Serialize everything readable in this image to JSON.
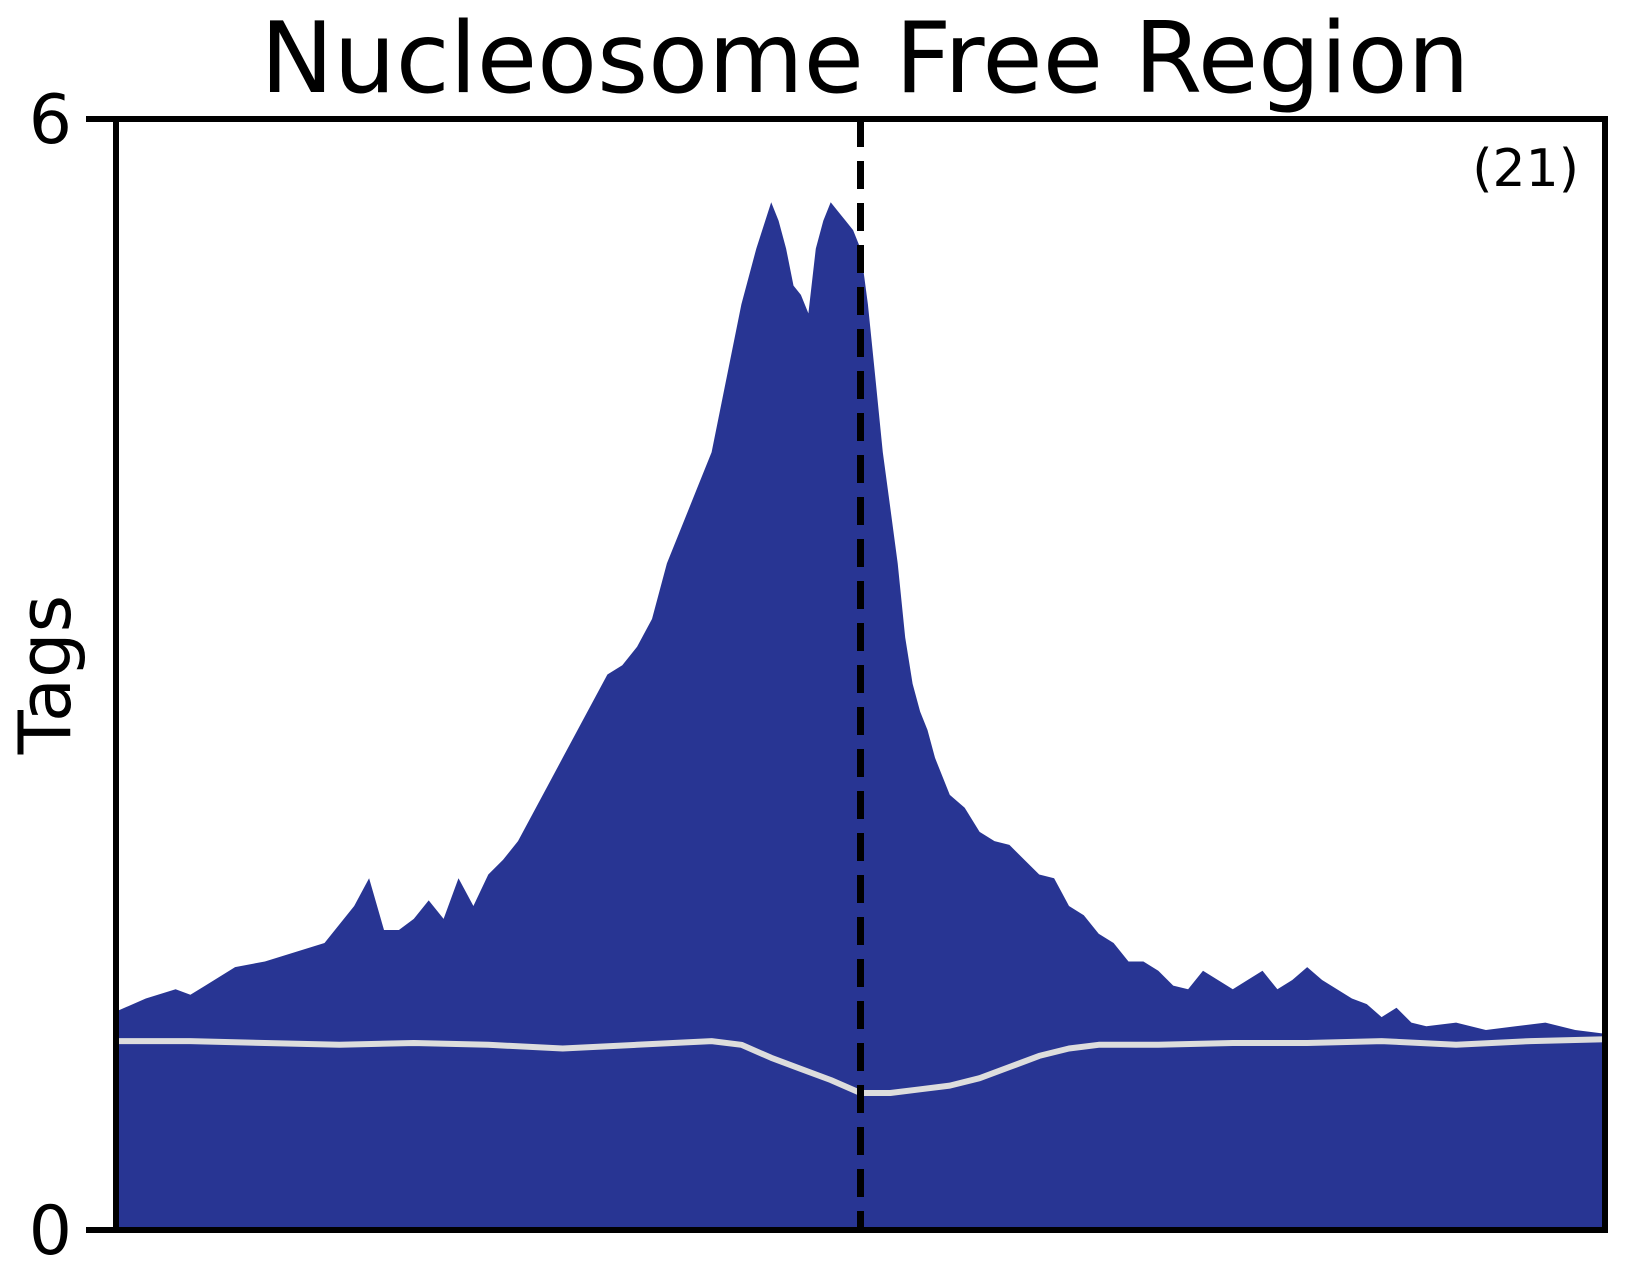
{
  "chart_data": {
    "type": "area",
    "title": "Nucleosome Free Region",
    "xlabel": "",
    "ylabel": "Tags",
    "ylim": [
      0,
      6
    ],
    "yticks": [
      "0",
      "6"
    ],
    "xlim": [
      0,
      1
    ],
    "annotation": "(21)",
    "center_marker": {
      "x": 0.5,
      "style": "dashed"
    },
    "grid": false,
    "legend": "none",
    "colors": {
      "fill": "#283593",
      "background_line": "#dddddd",
      "axes": "#000000"
    },
    "series": [
      {
        "kind": "filled-area",
        "x": [
          0.0,
          0.02,
          0.04,
          0.05,
          0.06,
          0.08,
          0.1,
          0.12,
          0.14,
          0.16,
          0.17,
          0.18,
          0.19,
          0.2,
          0.21,
          0.22,
          0.23,
          0.24,
          0.25,
          0.26,
          0.27,
          0.28,
          0.29,
          0.3,
          0.31,
          0.32,
          0.33,
          0.34,
          0.35,
          0.36,
          0.37,
          0.38,
          0.39,
          0.4,
          0.41,
          0.42,
          0.43,
          0.44,
          0.445,
          0.45,
          0.455,
          0.46,
          0.465,
          0.47,
          0.475,
          0.48,
          0.485,
          0.49,
          0.495,
          0.5,
          0.505,
          0.51,
          0.515,
          0.52,
          0.525,
          0.53,
          0.535,
          0.54,
          0.545,
          0.55,
          0.56,
          0.57,
          0.58,
          0.59,
          0.6,
          0.61,
          0.62,
          0.63,
          0.64,
          0.65,
          0.66,
          0.67,
          0.68,
          0.69,
          0.7,
          0.71,
          0.72,
          0.73,
          0.74,
          0.75,
          0.76,
          0.77,
          0.78,
          0.79,
          0.8,
          0.81,
          0.82,
          0.83,
          0.84,
          0.85,
          0.86,
          0.87,
          0.88,
          0.9,
          0.92,
          0.94,
          0.96,
          0.98,
          1.0
        ],
        "y": [
          1.18,
          1.25,
          1.3,
          1.27,
          1.32,
          1.42,
          1.45,
          1.5,
          1.55,
          1.75,
          1.9,
          1.62,
          1.62,
          1.68,
          1.78,
          1.68,
          1.9,
          1.75,
          1.92,
          2.0,
          2.1,
          2.25,
          2.4,
          2.55,
          2.7,
          2.85,
          3.0,
          3.05,
          3.15,
          3.3,
          3.6,
          3.8,
          4.0,
          4.2,
          4.6,
          5.0,
          5.3,
          5.55,
          5.45,
          5.3,
          5.1,
          5.05,
          4.95,
          5.3,
          5.45,
          5.55,
          5.5,
          5.45,
          5.4,
          5.3,
          5.0,
          4.6,
          4.2,
          3.9,
          3.6,
          3.2,
          2.95,
          2.8,
          2.7,
          2.55,
          2.35,
          2.28,
          2.15,
          2.1,
          2.08,
          2.0,
          1.92,
          1.9,
          1.75,
          1.7,
          1.6,
          1.55,
          1.45,
          1.45,
          1.4,
          1.32,
          1.3,
          1.4,
          1.35,
          1.3,
          1.35,
          1.4,
          1.3,
          1.35,
          1.42,
          1.35,
          1.3,
          1.25,
          1.22,
          1.15,
          1.2,
          1.12,
          1.1,
          1.12,
          1.08,
          1.1,
          1.12,
          1.08,
          1.06
        ]
      },
      {
        "kind": "background-line",
        "x": [
          0.0,
          0.05,
          0.1,
          0.15,
          0.2,
          0.25,
          0.3,
          0.35,
          0.4,
          0.42,
          0.44,
          0.46,
          0.48,
          0.5,
          0.52,
          0.54,
          0.56,
          0.58,
          0.6,
          0.62,
          0.64,
          0.66,
          0.68,
          0.7,
          0.75,
          0.8,
          0.85,
          0.9,
          0.95,
          1.0
        ],
        "y": [
          1.02,
          1.02,
          1.01,
          1.0,
          1.01,
          1.0,
          0.98,
          1.0,
          1.02,
          1.0,
          0.93,
          0.87,
          0.81,
          0.74,
          0.74,
          0.76,
          0.78,
          0.82,
          0.88,
          0.94,
          0.98,
          1.0,
          1.0,
          1.0,
          1.01,
          1.01,
          1.02,
          1.0,
          1.02,
          1.03
        ]
      }
    ]
  }
}
